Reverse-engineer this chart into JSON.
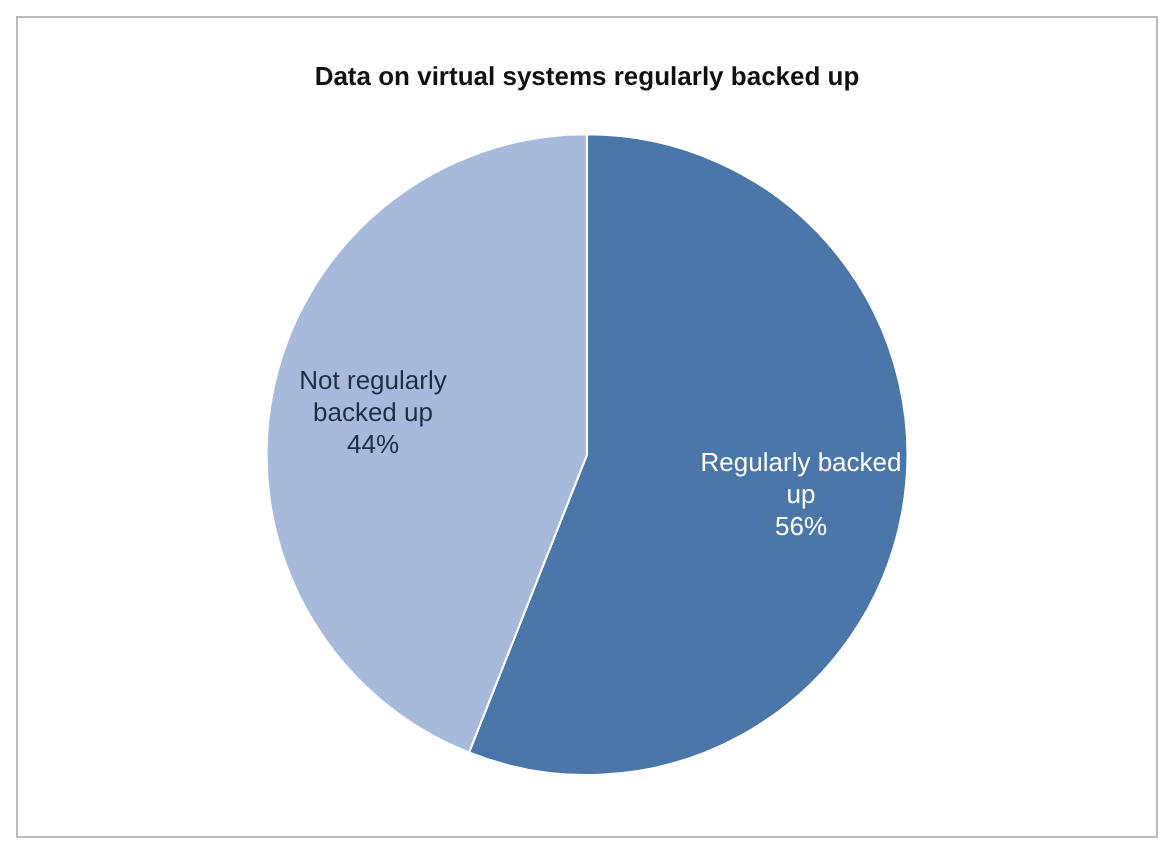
{
  "chart_data": {
    "type": "pie",
    "title": "Data on virtual systems regularly backed up",
    "categories": [
      "Regularly backed up",
      "Not regularly backed up"
    ],
    "values": [
      56,
      44
    ],
    "colors": [
      "#4a76aa",
      "#a7badb"
    ],
    "value_labels": [
      "56%",
      "44%"
    ],
    "legend": false
  }
}
